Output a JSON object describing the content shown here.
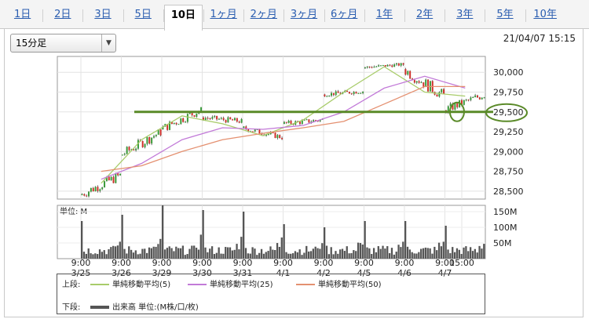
{
  "tabs": [
    "1日",
    "2日",
    "3日",
    "5日",
    "10日",
    "1ヶ月",
    "2ヶ月",
    "3ヶ月",
    "6ヶ月",
    "1年",
    "2年",
    "3年",
    "5年",
    "10年"
  ],
  "active_tab": "10日",
  "interval_select": {
    "value": "15分足"
  },
  "datetime": "21/04/07 15:15",
  "colors": {
    "ma5": "#a8cc6a",
    "ma25": "#c27ad8",
    "ma50": "#e49070",
    "candle_up": "#3a9a3a",
    "candle_down": "#d0302a",
    "volume": "#555555",
    "annotation": "#5a8a28"
  },
  "legend": {
    "upper_label": "上段:",
    "lower_label": "下段:",
    "ma5": "単純移動平均(5)",
    "ma25": "単純移動平均(25)",
    "ma50": "単純移動平均(50)",
    "volume": "出来高 単位:(M株/口/枚)"
  },
  "chart_data": {
    "type": "candlestick",
    "price_ticks": [
      "30,000",
      "29,750",
      "29,500",
      "29,250",
      "29,000",
      "28,750",
      "28,500"
    ],
    "price_ylim": [
      28400,
      30200
    ],
    "annotation_level": 29500,
    "volume_label": "単位: M",
    "volume_ticks": [
      "150M",
      "100M",
      "50M"
    ],
    "x_ticks": [
      {
        "time": "9:00",
        "date": "3/25"
      },
      {
        "time": "9:00",
        "date": "3/26"
      },
      {
        "time": "9:00",
        "date": "3/29"
      },
      {
        "time": "9:00",
        "date": "3/30"
      },
      {
        "time": "9:00",
        "date": "3/31"
      },
      {
        "time": "9:00",
        "date": "4/1"
      },
      {
        "time": "9:00",
        "date": "4/2"
      },
      {
        "time": "9:00",
        "date": "4/5"
      },
      {
        "time": "9:00",
        "date": "4/6"
      },
      {
        "time": "9:00",
        "date": "4/7"
      },
      {
        "time": "15:00",
        "date": ""
      }
    ],
    "daily_price": [
      {
        "date": "3/25",
        "open": 28450,
        "close": 28700,
        "low": 28380,
        "high": 28760
      },
      {
        "date": "3/26",
        "open": 28950,
        "close": 29250,
        "low": 28900,
        "high": 29280
      },
      {
        "date": "3/29",
        "open": 29280,
        "close": 29530,
        "low": 29220,
        "high": 29560
      },
      {
        "date": "3/30",
        "open": 29430,
        "close": 29380,
        "low": 29250,
        "high": 29460
      },
      {
        "date": "3/31",
        "open": 29300,
        "close": 29180,
        "low": 29130,
        "high": 29330
      },
      {
        "date": "4/1",
        "open": 29350,
        "close": 29400,
        "low": 29330,
        "high": 29520
      },
      {
        "date": "4/2",
        "open": 29720,
        "close": 29760,
        "low": 29650,
        "high": 29800
      },
      {
        "date": "4/5",
        "open": 30060,
        "close": 30100,
        "low": 30000,
        "high": 30120
      },
      {
        "date": "4/6",
        "open": 30040,
        "close": 29700,
        "low": 29620,
        "high": 30060
      },
      {
        "date": "4/7",
        "open": 29520,
        "close": 29720,
        "low": 29450,
        "high": 29770
      }
    ],
    "ma_series": [
      {
        "name": "単純移動平均(5)",
        "values": [
          28600,
          29150,
          29450,
          29350,
          29200,
          29400,
          29750,
          30070,
          29750,
          29700
        ]
      },
      {
        "name": "単純移動平均(25)",
        "values": [
          28650,
          28850,
          29150,
          29300,
          29280,
          29330,
          29500,
          29800,
          29950,
          29800
        ]
      },
      {
        "name": "単純移動平均(50)",
        "values": [
          28750,
          28820,
          29000,
          29150,
          29230,
          29300,
          29380,
          29600,
          29820,
          29820
        ]
      }
    ],
    "volume_peaks": [
      120,
      140,
      170,
      155,
      150,
      110,
      100,
      120,
      120,
      105
    ]
  }
}
